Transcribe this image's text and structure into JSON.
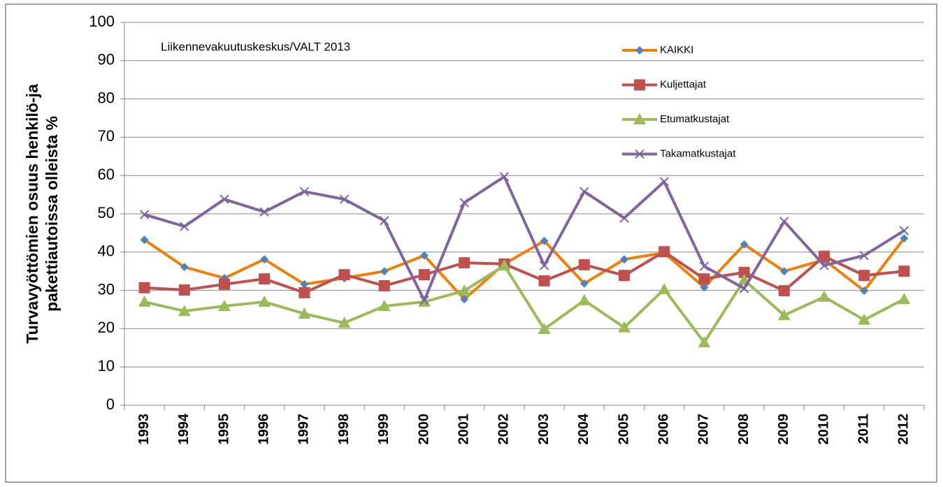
{
  "chart_data": {
    "type": "line",
    "annotation": "Liikennevakuutuskeskus/VALT 2013",
    "ylabel": [
      "Turvavyöttömien osuus henkilö-ja",
      "pakettiautoissa olleista %"
    ],
    "categories": [
      "1993",
      "1994",
      "1995",
      "1996",
      "1997",
      "1998",
      "1999",
      "2000",
      "2001",
      "2002",
      "2003",
      "2004",
      "2005",
      "2006",
      "2007",
      "2008",
      "2009",
      "2010",
      "2011",
      "2012"
    ],
    "series": [
      {
        "name": "KAIKKI",
        "color": "#f07f09",
        "marker": "diamond",
        "marker_color": "#4f81bd",
        "values": [
          43.2,
          36.1,
          33.2,
          38.1,
          31.6,
          33.2,
          35.0,
          39.1,
          27.7,
          36.9,
          42.9,
          31.8,
          38.1,
          39.8,
          30.8,
          42.0,
          35.0,
          38.0,
          29.9,
          43.6
        ]
      },
      {
        "name": "Kuljettajat",
        "color": "#c0504d",
        "marker": "square",
        "marker_color": "#c0504d",
        "values": [
          30.7,
          30.1,
          31.6,
          33.0,
          29.4,
          34.1,
          31.2,
          34.1,
          37.2,
          36.9,
          32.5,
          36.7,
          33.9,
          40.1,
          33.0,
          34.7,
          29.9,
          38.9,
          33.9,
          35.0
        ]
      },
      {
        "name": "Etumatkustajat",
        "color": "#9bbb59",
        "marker": "triangle",
        "marker_color": "#9bbb59",
        "values": [
          27.0,
          24.6,
          25.9,
          27.0,
          23.9,
          21.5,
          25.9,
          27.0,
          29.9,
          36.5,
          19.9,
          27.4,
          20.3,
          30.3,
          16.4,
          32.7,
          23.5,
          28.3,
          22.3,
          27.7
        ]
      },
      {
        "name": "Takamatkustajat",
        "color": "#8064a2",
        "marker": "x",
        "marker_color": "#8064a2",
        "values": [
          49.8,
          46.7,
          53.8,
          50.5,
          55.8,
          53.8,
          48.2,
          27.4,
          52.9,
          59.7,
          36.5,
          55.8,
          48.9,
          58.4,
          36.3,
          30.5,
          48.0,
          36.5,
          39.1,
          45.6
        ]
      }
    ],
    "ylim": [
      0,
      100
    ],
    "yticks": [
      0,
      10,
      20,
      30,
      40,
      50,
      60,
      70,
      80,
      90,
      100
    ],
    "grid": true
  }
}
